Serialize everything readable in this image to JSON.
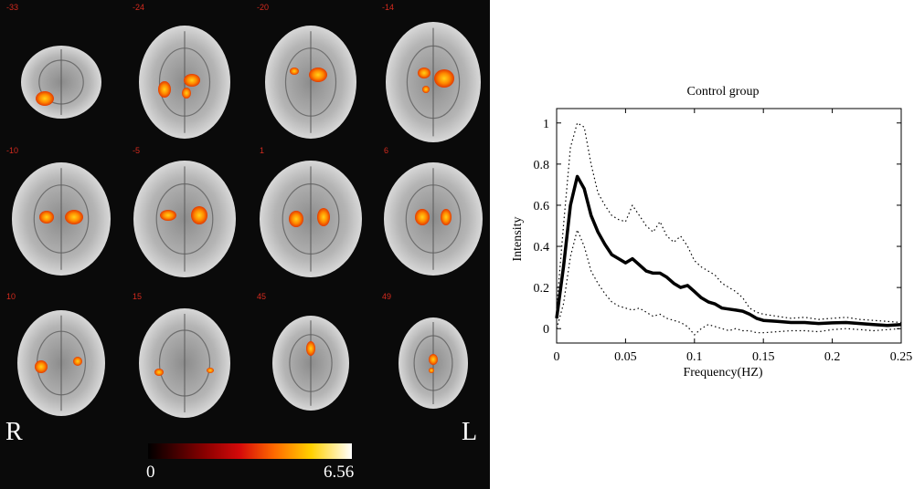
{
  "brain_panel": {
    "slice_labels": [
      "-33",
      "-24",
      "-20",
      "-14",
      "-10",
      "-5",
      "1",
      "6",
      "10",
      "15",
      "45",
      "49"
    ],
    "right_label": "R",
    "left_label": "L",
    "colorbar_min": "0",
    "colorbar_max": "6.56"
  },
  "chart_data": {
    "type": "line",
    "title": "Control group",
    "xlabel": "Frequency(HZ)",
    "ylabel": "Intensity",
    "xlim": [
      0,
      0.25
    ],
    "ylim": [
      -0.07,
      1.07
    ],
    "xticks": [
      0,
      0.05,
      0.1,
      0.15,
      0.2,
      0.25
    ],
    "xtick_labels": [
      "0",
      "0.05",
      "0.1",
      "0.15",
      "0.2",
      "0.25"
    ],
    "yticks": [
      0,
      0.2,
      0.4,
      0.6,
      0.8,
      1
    ],
    "ytick_labels": [
      "0",
      "0.2",
      "0.4",
      "0.6",
      "0.8",
      "1"
    ],
    "series": [
      {
        "style": "solid",
        "x": [
          0,
          0.005,
          0.01,
          0.015,
          0.02,
          0.025,
          0.03,
          0.035,
          0.04,
          0.045,
          0.05,
          0.055,
          0.06,
          0.065,
          0.07,
          0.075,
          0.08,
          0.085,
          0.09,
          0.095,
          0.1,
          0.105,
          0.11,
          0.115,
          0.12,
          0.125,
          0.13,
          0.135,
          0.14,
          0.145,
          0.15,
          0.16,
          0.17,
          0.18,
          0.19,
          0.2,
          0.21,
          0.22,
          0.23,
          0.24,
          0.25
        ],
        "y": [
          0.05,
          0.3,
          0.6,
          0.74,
          0.68,
          0.55,
          0.47,
          0.41,
          0.36,
          0.34,
          0.32,
          0.34,
          0.31,
          0.28,
          0.27,
          0.27,
          0.25,
          0.22,
          0.2,
          0.21,
          0.18,
          0.15,
          0.13,
          0.12,
          0.1,
          0.095,
          0.09,
          0.085,
          0.07,
          0.05,
          0.04,
          0.035,
          0.03,
          0.03,
          0.025,
          0.028,
          0.03,
          0.025,
          0.02,
          0.015,
          0.02
        ]
      },
      {
        "style": "dotted",
        "x": [
          0,
          0.005,
          0.01,
          0.015,
          0.02,
          0.025,
          0.03,
          0.035,
          0.04,
          0.045,
          0.05,
          0.055,
          0.06,
          0.065,
          0.07,
          0.075,
          0.08,
          0.085,
          0.09,
          0.095,
          0.1,
          0.105,
          0.11,
          0.115,
          0.12,
          0.125,
          0.13,
          0.135,
          0.14,
          0.145,
          0.15,
          0.16,
          0.17,
          0.18,
          0.19,
          0.2,
          0.21,
          0.22,
          0.23,
          0.24,
          0.25
        ],
        "y": [
          0.1,
          0.5,
          0.88,
          1.0,
          0.98,
          0.8,
          0.66,
          0.6,
          0.55,
          0.53,
          0.52,
          0.6,
          0.55,
          0.5,
          0.47,
          0.52,
          0.45,
          0.42,
          0.45,
          0.4,
          0.33,
          0.3,
          0.28,
          0.26,
          0.22,
          0.2,
          0.18,
          0.15,
          0.1,
          0.08,
          0.07,
          0.06,
          0.05,
          0.055,
          0.045,
          0.05,
          0.055,
          0.045,
          0.04,
          0.035,
          0.03
        ]
      },
      {
        "style": "dotted",
        "x": [
          0,
          0.005,
          0.01,
          0.015,
          0.02,
          0.025,
          0.03,
          0.035,
          0.04,
          0.045,
          0.05,
          0.055,
          0.06,
          0.065,
          0.07,
          0.075,
          0.08,
          0.085,
          0.09,
          0.095,
          0.1,
          0.105,
          0.11,
          0.115,
          0.12,
          0.125,
          0.13,
          0.135,
          0.14,
          0.145,
          0.15,
          0.16,
          0.17,
          0.18,
          0.19,
          0.2,
          0.21,
          0.22,
          0.23,
          0.24,
          0.25
        ],
        "y": [
          0.0,
          0.12,
          0.35,
          0.48,
          0.4,
          0.28,
          0.22,
          0.17,
          0.13,
          0.11,
          0.1,
          0.09,
          0.1,
          0.08,
          0.06,
          0.07,
          0.05,
          0.04,
          0.03,
          0.01,
          -0.03,
          0.0,
          0.02,
          0.01,
          0.0,
          -0.01,
          0.0,
          -0.01,
          -0.01,
          -0.02,
          -0.02,
          -0.015,
          -0.01,
          -0.01,
          -0.015,
          -0.005,
          0.0,
          -0.005,
          -0.01,
          -0.005,
          0.0
        ]
      }
    ]
  }
}
